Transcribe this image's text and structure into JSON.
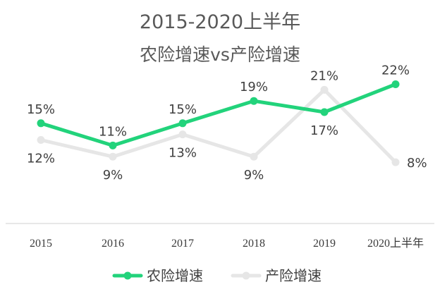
{
  "chart_data": {
    "type": "line",
    "title": "2015-2020上半年",
    "subtitle": "农险增速vs产险增速",
    "categories": [
      "2015",
      "2016",
      "2017",
      "2018",
      "2019",
      "2020上半年"
    ],
    "series": [
      {
        "name": "农险增速",
        "values": [
          15,
          11,
          15,
          19,
          17,
          22
        ],
        "labels": [
          "15%",
          "11%",
          "15%",
          "19%",
          "17%",
          "22%"
        ],
        "label_positions": [
          "above",
          "above",
          "above",
          "above",
          "below",
          "above"
        ],
        "color": "#22d37b"
      },
      {
        "name": "产险增速",
        "values": [
          12,
          9,
          13,
          9,
          21,
          8
        ],
        "labels": [
          "12%",
          "9%",
          "13%",
          "9%",
          "21%",
          "8%"
        ],
        "label_positions": [
          "below",
          "below",
          "below",
          "below",
          "above",
          "right"
        ],
        "color": "#e6e6e6"
      }
    ],
    "ylim": [
      -3,
      27
    ],
    "grid": false,
    "legend": "bottom"
  }
}
